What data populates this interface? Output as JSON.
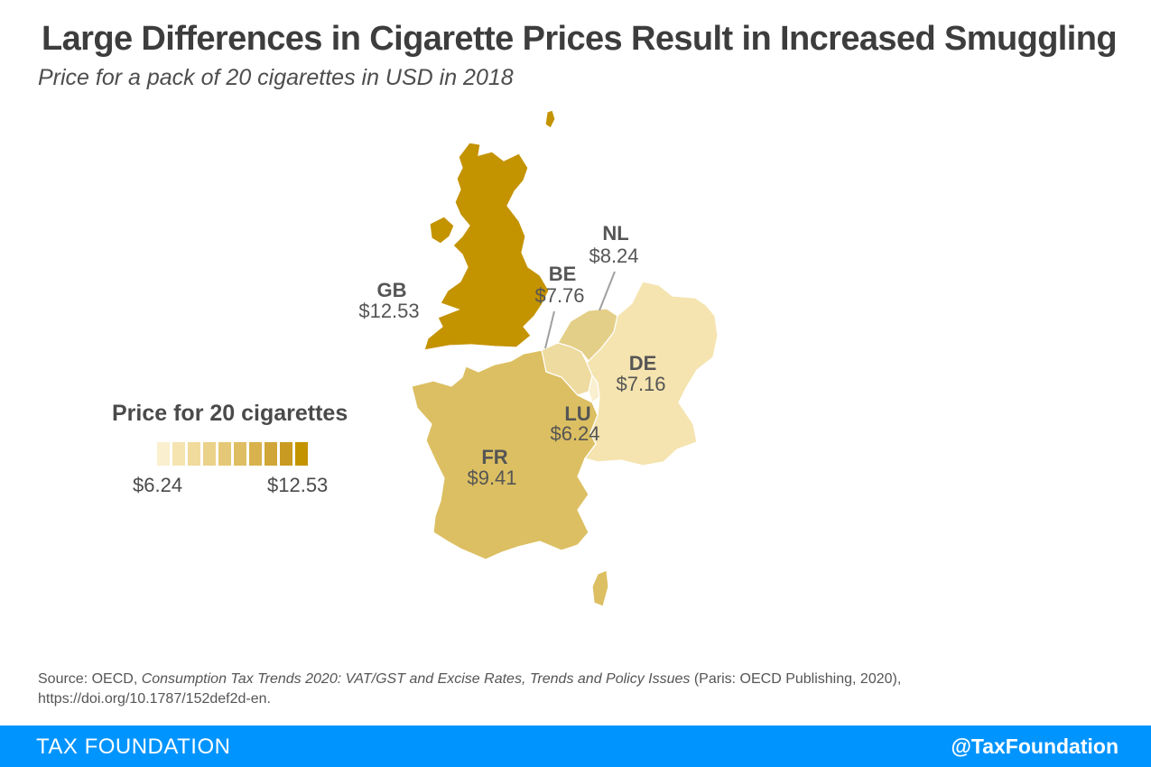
{
  "header": {
    "title": "Large Differences in Cigarette Prices Result in Increased Smuggling",
    "subtitle": "Price for a pack of 20 cigarettes in USD in 2018"
  },
  "map": {
    "countries": [
      {
        "code": "GB",
        "price": "$12.53",
        "value": 12.53,
        "color": "#c49300"
      },
      {
        "code": "FR",
        "price": "$9.41",
        "value": 9.41,
        "color": "#dcbf62"
      },
      {
        "code": "NL",
        "price": "$8.24",
        "value": 8.24,
        "color": "#e4cf88"
      },
      {
        "code": "BE",
        "price": "$7.76",
        "value": 7.76,
        "color": "#eedb9f"
      },
      {
        "code": "DE",
        "price": "$7.16",
        "value": 7.16,
        "color": "#f5e4b0"
      },
      {
        "code": "LU",
        "price": "$6.24",
        "value": 6.24,
        "color": "#faefcf"
      }
    ]
  },
  "legend": {
    "title": "Price for 20 cigarettes",
    "min_label": "$6.24",
    "max_label": "$12.53",
    "colors": [
      "#faefcf",
      "#f5e4b0",
      "#f0db9c",
      "#ebd28a",
      "#e5c877",
      "#dfbd62",
      "#d8b24d",
      "#d1a638",
      "#ca9b22",
      "#c49300"
    ]
  },
  "source": {
    "prefix": "Source:  OECD, ",
    "publication": "Consumption Tax Trends 2020: VAT/GST and Excise Rates, Trends and Policy Issues",
    "suffix": " (Paris: OECD Publishing, 2020),",
    "doi": "https://doi.org/10.1787/152def2d-en."
  },
  "footer": {
    "brand": "TAX FOUNDATION",
    "handle": "@TaxFoundation"
  }
}
